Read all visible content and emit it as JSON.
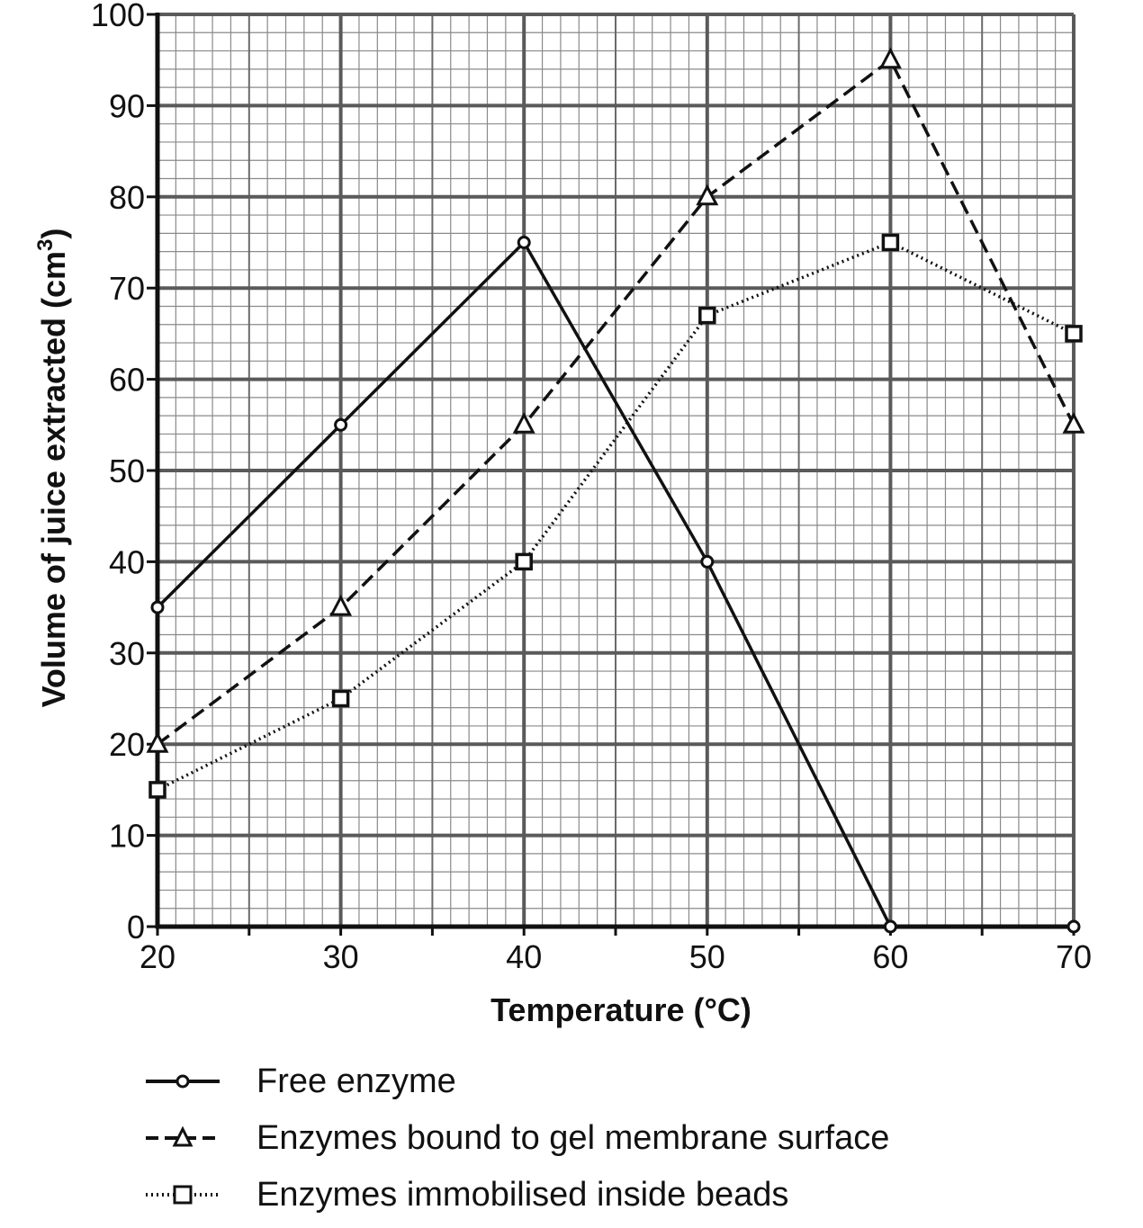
{
  "chart_data": {
    "type": "line",
    "title": "",
    "xlabel": "Temperature (°C)",
    "ylabel": "Volume of juice extracted (cm",
    "ylabel_superscript": "3",
    "ylabel_suffix": ")",
    "xlim": [
      20,
      70
    ],
    "ylim": [
      0,
      100
    ],
    "x_ticks": [
      "20",
      "30",
      "40",
      "50",
      "60",
      "70"
    ],
    "y_ticks": [
      "0",
      "10",
      "20",
      "30",
      "40",
      "50",
      "60",
      "70",
      "80",
      "90",
      "100"
    ],
    "grid": true,
    "legend_position": "bottom",
    "x": [
      20,
      30,
      40,
      50,
      60,
      70
    ],
    "series": [
      {
        "name": "Free enzyme",
        "values": [
          35,
          55,
          75,
          40,
          0,
          0
        ],
        "marker": "circle",
        "line": "solid"
      },
      {
        "name": "Enzymes bound to gel membrane surface",
        "values": [
          20,
          35,
          55,
          80,
          95,
          55
        ],
        "marker": "triangle",
        "line": "dashed"
      },
      {
        "name": "Enzymes immobilised inside beads",
        "values": [
          15,
          25,
          40,
          67,
          75,
          65
        ],
        "marker": "square",
        "line": "dotted"
      }
    ]
  }
}
